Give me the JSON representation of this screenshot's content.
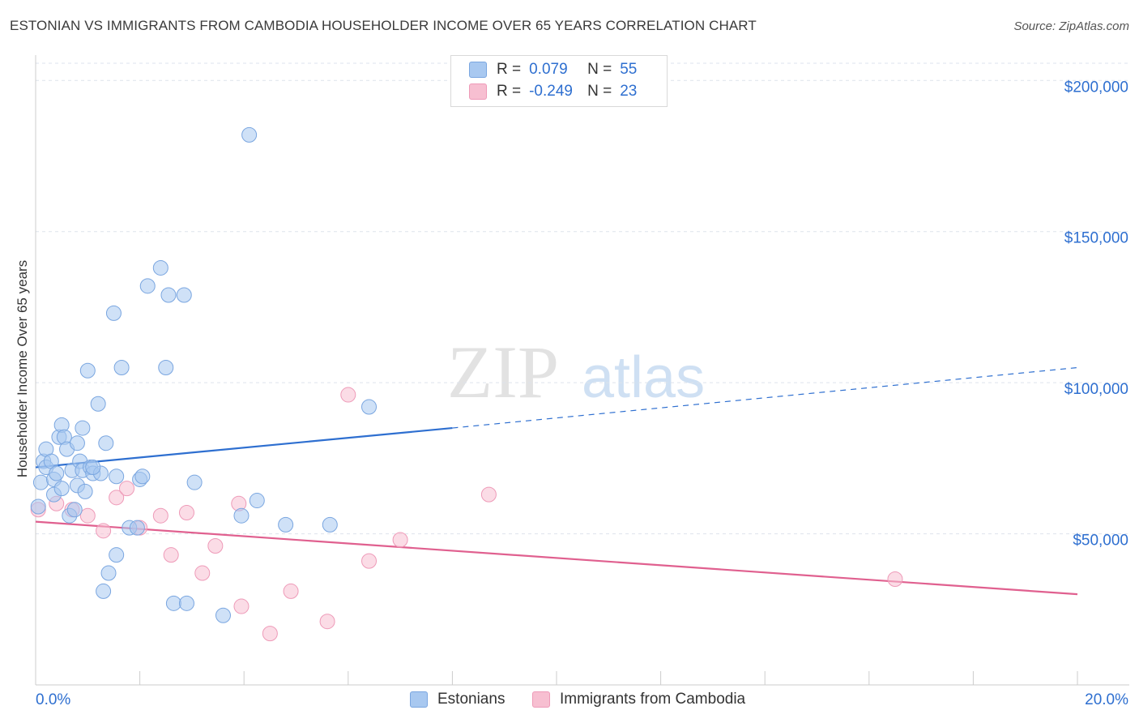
{
  "title": "ESTONIAN VS IMMIGRANTS FROM CAMBODIA HOUSEHOLDER INCOME OVER 65 YEARS CORRELATION CHART",
  "source": "Source: ZipAtlas.com",
  "watermark": {
    "zip": "ZIP",
    "atlas": "atlas"
  },
  "legend": {
    "rows": [
      {
        "r_label": "R =",
        "r_value": "0.079",
        "n_label": "N =",
        "n_value": "55"
      },
      {
        "r_label": "R =",
        "r_value": "-0.249",
        "n_label": "N =",
        "n_value": "23"
      }
    ]
  },
  "bottom_legend": {
    "series1": "Estonians",
    "series2": "Immigrants from Cambodia"
  },
  "colors": {
    "blue_fill": "#a8c8f0",
    "blue_stroke": "#7aa6e0",
    "blue_line": "#2e6fd0",
    "pink_fill": "#f7bfd1",
    "pink_stroke": "#ee9ab8",
    "pink_line": "#e0608f",
    "axis_text": "#2e6fd0",
    "grid": "#dde3ec"
  },
  "chart_data": {
    "type": "scatter",
    "title": "ESTONIAN VS IMMIGRANTS FROM CAMBODIA HOUSEHOLDER INCOME OVER 65 YEARS CORRELATION CHART",
    "xlabel": "",
    "ylabel": "Householder Income Over 65 years",
    "xlim": [
      0,
      20
    ],
    "ylim": [
      0,
      210000
    ],
    "x_tick_labels": [
      "0.0%",
      "20.0%"
    ],
    "y_ticks": [
      50000,
      100000,
      150000,
      200000
    ],
    "y_tick_labels": [
      "$50,000",
      "$100,000",
      "$150,000",
      "$200,000"
    ],
    "series": [
      {
        "name": "Estonians",
        "r": 0.079,
        "n": 55,
        "trend": {
          "x0": 0,
          "y0": 72000,
          "x1": 8,
          "y1": 85000,
          "dash_x1": 20,
          "dash_y1": 105000
        },
        "points": [
          [
            0.1,
            67000
          ],
          [
            0.15,
            74000
          ],
          [
            0.2,
            72000
          ],
          [
            0.2,
            78000
          ],
          [
            0.3,
            74000
          ],
          [
            0.35,
            68000
          ],
          [
            0.35,
            63000
          ],
          [
            0.4,
            70000
          ],
          [
            0.45,
            82000
          ],
          [
            0.5,
            65000
          ],
          [
            0.5,
            86000
          ],
          [
            0.55,
            82000
          ],
          [
            0.6,
            78000
          ],
          [
            0.65,
            56000
          ],
          [
            0.7,
            71000
          ],
          [
            0.75,
            58000
          ],
          [
            0.8,
            80000
          ],
          [
            0.8,
            66000
          ],
          [
            0.85,
            74000
          ],
          [
            0.9,
            71000
          ],
          [
            0.9,
            85000
          ],
          [
            0.95,
            64000
          ],
          [
            1.0,
            104000
          ],
          [
            1.05,
            72000
          ],
          [
            1.1,
            70000
          ],
          [
            1.2,
            93000
          ],
          [
            1.25,
            70000
          ],
          [
            1.3,
            31000
          ],
          [
            1.35,
            80000
          ],
          [
            1.4,
            37000
          ],
          [
            1.5,
            123000
          ],
          [
            1.55,
            43000
          ],
          [
            1.55,
            69000
          ],
          [
            1.65,
            105000
          ],
          [
            1.8,
            52000
          ],
          [
            1.95,
            52000
          ],
          [
            2.0,
            68000
          ],
          [
            2.05,
            69000
          ],
          [
            2.15,
            132000
          ],
          [
            2.4,
            138000
          ],
          [
            2.5,
            105000
          ],
          [
            2.55,
            129000
          ],
          [
            2.65,
            27000
          ],
          [
            2.85,
            129000
          ],
          [
            2.9,
            27000
          ],
          [
            3.05,
            67000
          ],
          [
            3.6,
            23000
          ],
          [
            3.95,
            56000
          ],
          [
            4.1,
            182000
          ],
          [
            4.25,
            61000
          ],
          [
            4.8,
            53000
          ],
          [
            5.65,
            53000
          ],
          [
            6.4,
            92000
          ],
          [
            0.05,
            59000
          ],
          [
            1.1,
            72000
          ]
        ]
      },
      {
        "name": "Immigrants from Cambodia",
        "r": -0.249,
        "n": 23,
        "trend": {
          "x0": 0,
          "y0": 54000,
          "x1": 20,
          "y1": 30000
        },
        "points": [
          [
            0.05,
            58000
          ],
          [
            0.4,
            60000
          ],
          [
            0.7,
            58000
          ],
          [
            1.0,
            56000
          ],
          [
            1.3,
            51000
          ],
          [
            1.55,
            62000
          ],
          [
            1.75,
            65000
          ],
          [
            2.0,
            52000
          ],
          [
            2.4,
            56000
          ],
          [
            2.6,
            43000
          ],
          [
            2.9,
            57000
          ],
          [
            3.2,
            37000
          ],
          [
            3.45,
            46000
          ],
          [
            3.9,
            60000
          ],
          [
            3.95,
            26000
          ],
          [
            4.5,
            17000
          ],
          [
            4.9,
            31000
          ],
          [
            5.6,
            21000
          ],
          [
            6.0,
            96000
          ],
          [
            6.4,
            41000
          ],
          [
            7.0,
            48000
          ],
          [
            8.7,
            63000
          ],
          [
            16.5,
            35000
          ]
        ]
      }
    ]
  }
}
